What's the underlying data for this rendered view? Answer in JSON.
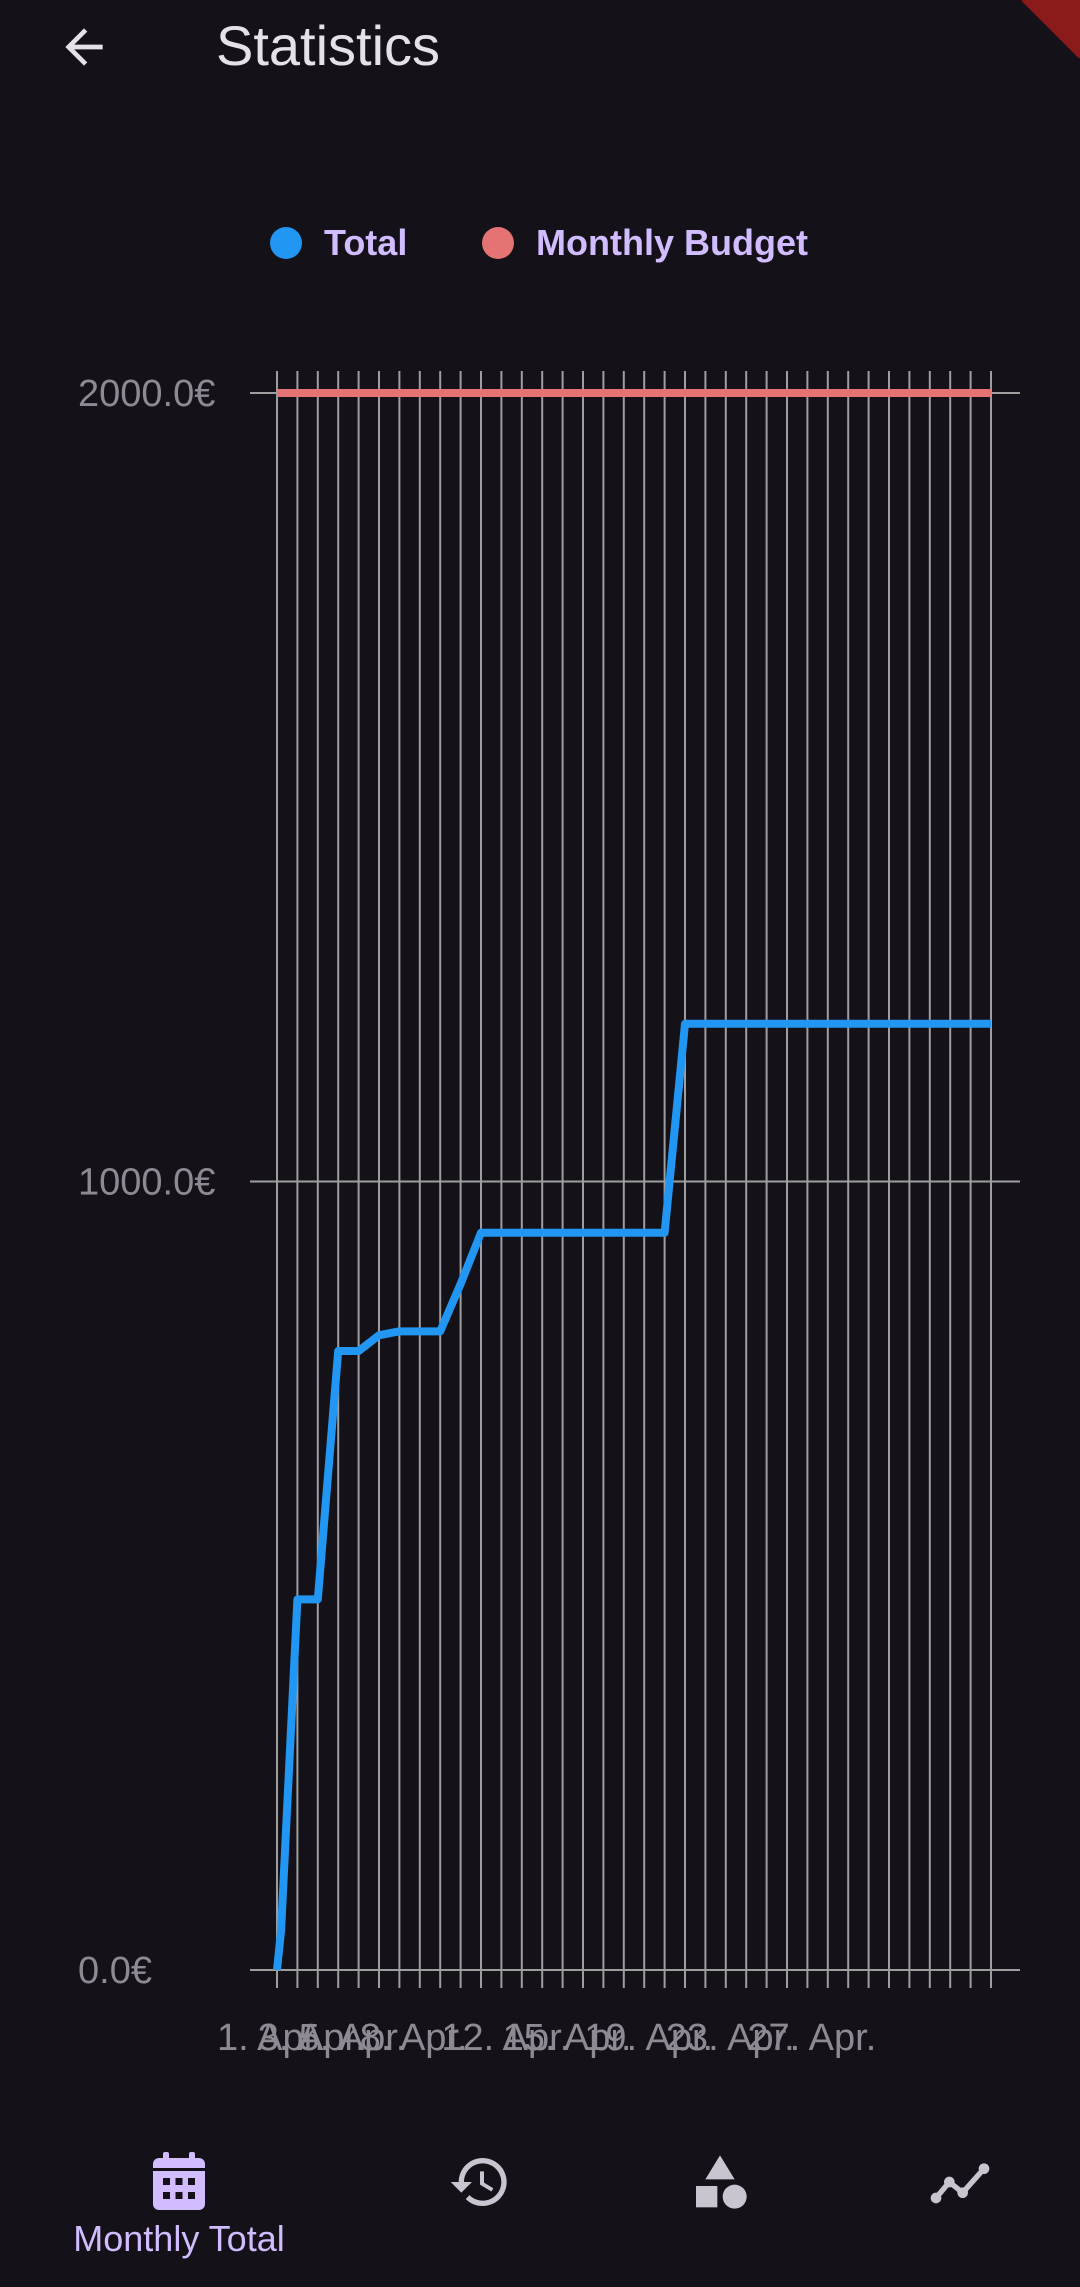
{
  "appbar": {
    "title": "Statistics"
  },
  "legend": {
    "items": [
      {
        "label": "Total",
        "color": "#2196F3"
      },
      {
        "label": "Monthly Budget",
        "color": "#E57373"
      }
    ]
  },
  "chart_data": {
    "type": "line",
    "x_tick_labels": [
      "1. Apr.",
      "3. Apr.",
      "5. Apr.",
      "8. Apr.",
      "12. Apr.",
      "15. Apr.",
      "19. Apr.",
      "23. Apr.",
      "27. Apr."
    ],
    "y_tick_labels": [
      "0.0€",
      "1000.0€",
      "2000.0€"
    ],
    "ylim": [
      0,
      2000
    ],
    "xlim": [
      1,
      36
    ],
    "grid": true,
    "series": [
      {
        "name": "Total",
        "color": "#2196F3",
        "x": [
          1,
          1.2,
          2,
          3,
          4,
          5,
          6,
          7,
          8,
          9,
          10,
          11,
          12,
          13,
          14,
          15,
          16,
          17,
          18,
          19,
          20,
          21,
          22,
          23,
          24,
          25,
          26,
          27,
          28,
          29,
          30,
          31,
          32,
          33,
          34,
          35,
          36
        ],
        "values": [
          0,
          50,
          470,
          470,
          785,
          785,
          805,
          810,
          810,
          810,
          870,
          935,
          935,
          935,
          935,
          935,
          935,
          935,
          935,
          935,
          935,
          1200,
          1200,
          1200,
          1200,
          1200,
          1200,
          1200,
          1200,
          1200,
          1200,
          1200,
          1200,
          1200,
          1200,
          1200,
          1200
        ]
      },
      {
        "name": "Monthly Budget",
        "color": "#E57373",
        "x": [
          1,
          36
        ],
        "values": [
          2000,
          2000
        ]
      }
    ]
  },
  "bottom_nav": {
    "items": [
      {
        "label": "Monthly Total",
        "icon": "calendar-icon",
        "selected": true
      },
      {
        "label": "",
        "icon": "history-icon",
        "selected": false
      },
      {
        "label": "",
        "icon": "categories-icon",
        "selected": false
      },
      {
        "label": "",
        "icon": "trend-icon",
        "selected": false
      }
    ]
  }
}
